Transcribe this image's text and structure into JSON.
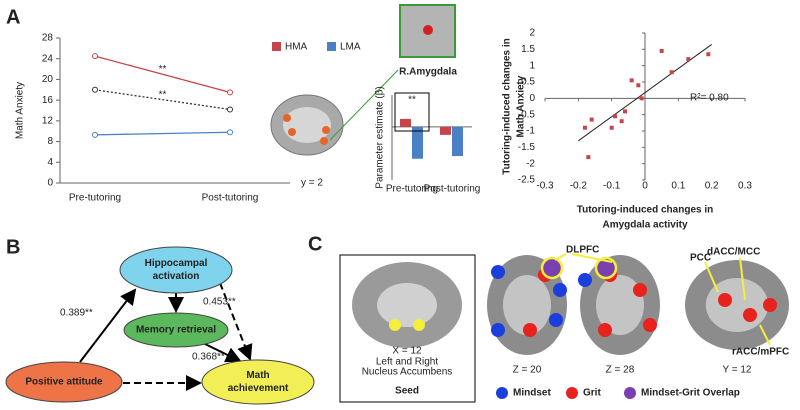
{
  "panels": [
    "A",
    "B",
    "C"
  ],
  "chart_data": [
    {
      "type": "line",
      "y_label": "Math Anxiety",
      "categories": [
        "Pre-tutoring",
        "Post-tutoring"
      ],
      "ylim": [
        0,
        28
      ],
      "yticks": [
        0,
        4,
        8,
        12,
        16,
        20,
        24,
        28
      ],
      "series": [
        {
          "name": "HMA",
          "color": "#c9444a",
          "values": [
            24.5,
            17.5
          ]
        },
        {
          "name": "LMA",
          "color": "#4a80c4",
          "values": [
            9.3,
            9.8
          ]
        },
        {
          "color": "#333333",
          "dashed": true,
          "values": [
            18,
            14.2
          ]
        }
      ],
      "annotations": [
        "**",
        "**"
      ]
    },
    {
      "type": "bar",
      "title": "R.Amygdala",
      "slice_label": "y = 2",
      "y_label": "Parameter estimate (β)",
      "categories": [
        "Pre-tutoring",
        "Post-tutoring"
      ],
      "ylim": [
        -1,
        0.6
      ],
      "series": [
        {
          "color": "#c9444a",
          "values": [
            0.15,
            -0.15
          ]
        },
        {
          "color": "#4a80c4",
          "values": [
            -0.6,
            -0.55
          ]
        }
      ],
      "annotation": "**"
    },
    {
      "type": "scatter",
      "y_label": [
        "Tutoring-induced changes in",
        "Math Anxiety"
      ],
      "x_label": [
        "Tutoring-induced changes in",
        "Amygdala activity"
      ],
      "xlim": [
        -0.3,
        0.3
      ],
      "xticks": [
        -0.3,
        -0.2,
        -0.1,
        0,
        0.1,
        0.2,
        0.3
      ],
      "ylim": [
        -2.5,
        2
      ],
      "yticks": [
        -2.5,
        -2,
        -1.5,
        -1,
        -0.5,
        0,
        0.5,
        1,
        1.5,
        2
      ],
      "x": [
        -0.18,
        -0.17,
        -0.16,
        -0.1,
        -0.09,
        -0.07,
        -0.06,
        -0.04,
        -0.02,
        -0.01,
        0.05,
        0.08,
        0.13,
        0.19
      ],
      "values": [
        -0.9,
        -1.8,
        -0.65,
        -0.9,
        -0.55,
        -0.7,
        -0.4,
        0.55,
        0.4,
        0.0,
        1.45,
        0.8,
        1.2,
        1.35
      ],
      "color": "#c9444a",
      "fit_line": {
        "x": [
          -0.2,
          0.2
        ],
        "values": [
          -1.3,
          1.65
        ]
      },
      "annotation": "R²= 0.80"
    }
  ],
  "diagram": {
    "nodes": [
      {
        "lines": [
          "Hippocampal",
          "activation"
        ]
      },
      {
        "lines": [
          "Memory retrieval"
        ]
      },
      {
        "lines": [
          "Positive attitude"
        ]
      },
      {
        "lines": [
          "Math",
          "achievement"
        ]
      }
    ],
    "edges": [
      {
        "label": "0.389**"
      },
      {
        "label": "0.453**"
      },
      {
        "label": "0.368**"
      }
    ]
  },
  "brain_maps": {
    "seed": {
      "slice": "X = 12",
      "lines": [
        "Left and Right",
        "Nucleus Accumbens"
      ],
      "title": "Seed"
    },
    "slices": [
      "Z = 20",
      "Z = 28",
      "Y = 12"
    ],
    "regions": [
      "DLPFC",
      "PCC",
      "dACC/MCC",
      "rACC/mPFC"
    ],
    "legend": [
      "Mindset",
      "Grit",
      "Mindset-Grit Overlap"
    ]
  }
}
